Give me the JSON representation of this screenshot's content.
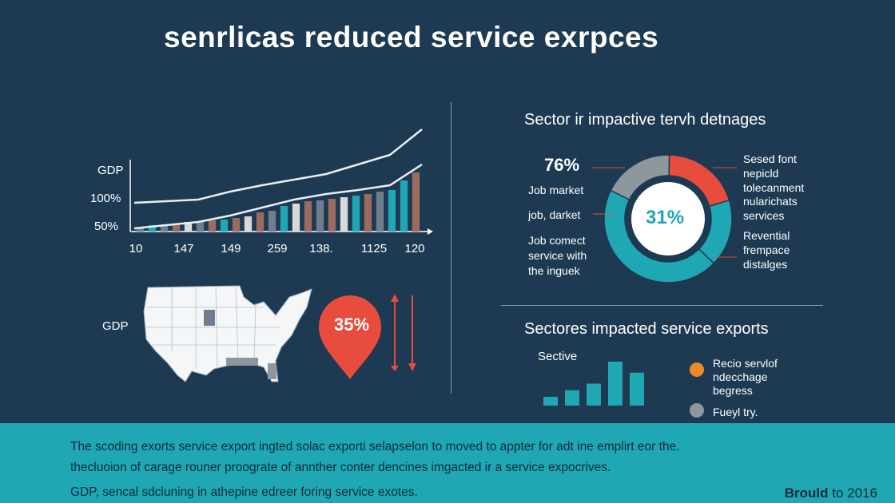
{
  "header": {
    "title": "senrlicas reduced service exrpces"
  },
  "chart_data": [
    {
      "type": "bar",
      "title": "",
      "ylabel": "GDP",
      "y_tick_labels": [
        "100%",
        "50%"
      ],
      "x_tick_labels": [
        "10",
        "147",
        "149",
        "259",
        "138.",
        "1125",
        "120"
      ],
      "bars": [
        {
          "value": 5,
          "color": "#6f7d8c"
        },
        {
          "value": 8,
          "color": "#1fa7b3"
        },
        {
          "value": 9,
          "color": "#6f7d8c"
        },
        {
          "value": 10,
          "color": "#9b6b60"
        },
        {
          "value": 12,
          "color": "#d9d9d9"
        },
        {
          "value": 13,
          "color": "#6f7d8c"
        },
        {
          "value": 14,
          "color": "#9b6b60"
        },
        {
          "value": 15,
          "color": "#1fa7b3"
        },
        {
          "value": 17,
          "color": "#9b6b60"
        },
        {
          "value": 19,
          "color": "#d9d9d9"
        },
        {
          "value": 24,
          "color": "#9b6b60"
        },
        {
          "value": 26,
          "color": "#6f7d8c"
        },
        {
          "value": 32,
          "color": "#1fa7b3"
        },
        {
          "value": 35,
          "color": "#d9d9d9"
        },
        {
          "value": 38,
          "color": "#9b6b60"
        },
        {
          "value": 39,
          "color": "#6f7d8c"
        },
        {
          "value": 41,
          "color": "#9b6b60"
        },
        {
          "value": 43,
          "color": "#d9d9d9"
        },
        {
          "value": 45,
          "color": "#1fa7b3"
        },
        {
          "value": 47,
          "color": "#9b6b60"
        },
        {
          "value": 50,
          "color": "#6f7d8c"
        },
        {
          "value": 52,
          "color": "#1fa7b3"
        },
        {
          "value": 64,
          "color": "#1fa7b3"
        },
        {
          "value": 74,
          "color": "#9b6b60"
        }
      ],
      "line_upper": [
        36,
        38,
        40,
        50,
        58,
        65,
        72,
        84,
        96,
        128
      ],
      "line_lower": [
        4,
        8,
        12,
        20,
        30,
        40,
        47,
        52,
        58,
        84
      ],
      "ylim": [
        0,
        140
      ]
    },
    {
      "type": "pie",
      "title": "Sector ir impactive tervh detnages",
      "center_label": "31%",
      "slices": [
        {
          "value": 20,
          "color": "#e84c3d"
        },
        {
          "value": 17,
          "color": "#1fa7b3"
        },
        {
          "value": 45,
          "color": "#1fa7b3"
        },
        {
          "value": 18,
          "color": "#8f979e"
        }
      ]
    },
    {
      "type": "bar",
      "title": "Sectores impacted service exports",
      "xlabel": "Sective",
      "values": [
        4,
        7,
        10,
        20,
        15
      ],
      "color": "#1fa7b3"
    }
  ],
  "left_chart": {
    "top_label": "GDP",
    "y_tick_100": "100%",
    "y_tick_50": "50%"
  },
  "map": {
    "label": "GDP",
    "badge": "35%",
    "badge_color": "#e84c3d"
  },
  "donut": {
    "stat": "76%",
    "left_labels": [
      "Job market",
      "job, darket"
    ],
    "left_note": [
      "Job comect",
      "service with",
      "the inguek"
    ],
    "right_top": [
      "Sesed font",
      "nepicld",
      "tolecanment",
      "nularichats",
      "services"
    ],
    "right_bottom": [
      "Revential",
      "frempace",
      "distalges"
    ]
  },
  "sector": {
    "legend": [
      {
        "text": [
          "Recio servlof",
          "ndecchage",
          "begress"
        ],
        "color": "#e98a2a"
      },
      {
        "text": [
          "Fueyl try."
        ],
        "color": "#8f979e"
      }
    ]
  },
  "footer": {
    "line1": "The scoding exorts service export ingted solac exporti selapselon to moved to appter for adt ine emplirt eor the.",
    "line2": "thecluoion of carage rouner proograte of annther conter dencines imgacted ir a service expocrives.",
    "line3": "GDP, sencal sdcluning in athepine edreer foring service exotes.",
    "brand_bold": "Brould",
    "brand_rest": " to 2016"
  },
  "colors": {
    "background": "#1d3a52",
    "accent": "#1fa7b3",
    "red": "#e84c3d"
  }
}
